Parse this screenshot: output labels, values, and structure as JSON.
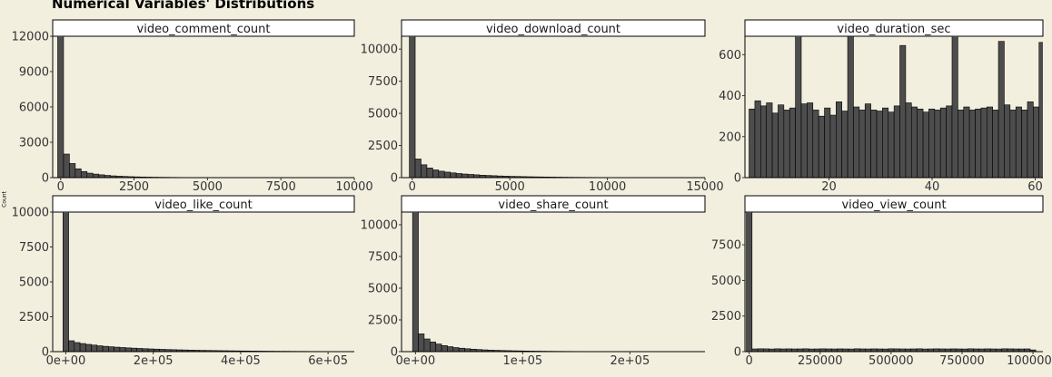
{
  "title": "Numerical Variables' Distributions",
  "y_axis_label": "Count",
  "colors": {
    "background": "#f3efdf",
    "bar_fill": "#4d4d4d",
    "bar_stroke": "#000000",
    "strip_fill": "#ffffff"
  },
  "chart_data": [
    {
      "type": "bar",
      "title": "video_comment_count",
      "xlim": [
        -270,
        10000
      ],
      "ylim": [
        0,
        12000
      ],
      "x_ticks": [
        0,
        2500,
        5000,
        7500,
        10000
      ],
      "x_tick_labels": [
        "0",
        "2500",
        "5000",
        "7500",
        "10000"
      ],
      "y_ticks": [
        0,
        3000,
        6000,
        9000,
        12000
      ],
      "y_tick_labels": [
        "0",
        "3000",
        "6000",
        "9000",
        "12000"
      ],
      "bin_start": -100,
      "bin_width": 200,
      "values": [
        13000,
        2000,
        1200,
        750,
        520,
        380,
        300,
        240,
        190,
        150,
        120,
        100,
        80,
        65,
        55,
        45,
        38,
        32,
        27,
        22,
        18,
        15,
        13,
        11,
        9,
        8,
        7,
        6,
        5,
        4,
        4,
        3,
        3,
        2,
        2,
        2,
        2,
        1,
        1,
        1,
        1,
        1,
        1,
        1,
        1,
        1,
        1,
        1,
        1,
        1
      ]
    },
    {
      "type": "bar",
      "title": "video_download_count",
      "xlim": [
        -550,
        15000
      ],
      "ylim": [
        0,
        11000
      ],
      "x_ticks": [
        0,
        5000,
        10000,
        15000
      ],
      "x_tick_labels": [
        "0",
        "5000",
        "10000",
        "15000"
      ],
      "y_ticks": [
        0,
        2500,
        5000,
        7500,
        10000
      ],
      "y_tick_labels": [
        "0",
        "2500",
        "5000",
        "7500",
        "10000"
      ],
      "bin_start": -150,
      "bin_width": 300,
      "values": [
        12000,
        1450,
        1000,
        750,
        600,
        500,
        430,
        370,
        320,
        280,
        250,
        220,
        190,
        170,
        150,
        130,
        115,
        100,
        90,
        80,
        70,
        62,
        55,
        48,
        42,
        37,
        32,
        28,
        25,
        22,
        19,
        17,
        15,
        13,
        11,
        10,
        9,
        8,
        7,
        6,
        5,
        5,
        4,
        4,
        3,
        3,
        3,
        2,
        2,
        2
      ]
    },
    {
      "type": "bar",
      "title": "video_duration_sec",
      "xlim": [
        3.7,
        61.5
      ],
      "ylim": [
        0,
        690
      ],
      "x_ticks": [
        20,
        40,
        60
      ],
      "x_tick_labels": [
        "20",
        "40",
        "60"
      ],
      "y_ticks": [
        0,
        200,
        400,
        600
      ],
      "y_tick_labels": [
        "0",
        "200",
        "400",
        "600"
      ],
      "bin_start": 4.5,
      "bin_width": 1.125,
      "values": [
        335,
        375,
        350,
        365,
        315,
        355,
        330,
        340,
        720,
        360,
        365,
        330,
        300,
        340,
        305,
        370,
        325,
        690,
        345,
        330,
        360,
        330,
        325,
        340,
        320,
        350,
        645,
        365,
        345,
        335,
        320,
        335,
        330,
        340,
        350,
        720,
        330,
        345,
        330,
        335,
        340,
        345,
        330,
        665,
        355,
        330,
        345,
        330,
        370,
        345,
        660
      ]
    },
    {
      "type": "bar",
      "title": "video_like_count",
      "xlim": [
        -30000,
        660000
      ],
      "ylim": [
        0,
        10000
      ],
      "x_ticks": [
        0,
        200000,
        400000,
        600000
      ],
      "x_tick_labels": [
        "0e+00",
        "2e+05",
        "4e+05",
        "6e+05"
      ],
      "y_ticks": [
        0,
        2500,
        5000,
        7500,
        10000
      ],
      "y_tick_labels": [
        "0",
        "2500",
        "5000",
        "7500",
        "10000"
      ],
      "bin_start": -6500,
      "bin_width": 13000,
      "values": [
        10500,
        780,
        650,
        580,
        520,
        470,
        420,
        380,
        350,
        320,
        295,
        270,
        250,
        230,
        210,
        195,
        180,
        165,
        150,
        140,
        130,
        120,
        110,
        100,
        92,
        85,
        78,
        72,
        66,
        60,
        55,
        50,
        46,
        42,
        38,
        35,
        32,
        29,
        26,
        24,
        22,
        20,
        18,
        16,
        15,
        14,
        12,
        11,
        10,
        9
      ]
    },
    {
      "type": "bar",
      "title": "video_share_count",
      "xlim": [
        -13000,
        270000
      ],
      "ylim": [
        0,
        11000
      ],
      "x_ticks": [
        0,
        100000,
        200000
      ],
      "x_tick_labels": [
        "0e+00",
        "1e+05",
        "2e+05"
      ],
      "y_ticks": [
        0,
        2500,
        5000,
        7500,
        10000
      ],
      "y_tick_labels": [
        "0",
        "2500",
        "5000",
        "7500",
        "10000"
      ],
      "bin_start": -2700,
      "bin_width": 5400,
      "values": [
        12000,
        1400,
        1000,
        760,
        600,
        480,
        390,
        320,
        270,
        230,
        195,
        165,
        140,
        120,
        104,
        90,
        78,
        68,
        59,
        51,
        44,
        38,
        33,
        29,
        25,
        22,
        19,
        17,
        15,
        13,
        11,
        10,
        9,
        8,
        7,
        6,
        5,
        5,
        4,
        4,
        3,
        3,
        3,
        2,
        2,
        2,
        2,
        1,
        1,
        1
      ]
    },
    {
      "type": "bar",
      "title": "video_view_count",
      "xlim": [
        -15000,
        1035000
      ],
      "ylim": [
        0,
        9800
      ],
      "x_ticks": [
        0,
        250000,
        500000,
        750000,
        1000000
      ],
      "x_tick_labels": [
        "0",
        "250000",
        "500000",
        "750000",
        "1000000"
      ],
      "y_ticks": [
        0,
        2500,
        5000,
        7500
      ],
      "y_tick_labels": [
        "0",
        "2500",
        "5000",
        "7500"
      ],
      "bin_start": -10000,
      "bin_width": 20000,
      "values": [
        10000,
        190,
        200,
        195,
        185,
        200,
        190,
        195,
        188,
        192,
        200,
        185,
        190,
        198,
        192,
        188,
        195,
        190,
        185,
        200,
        192,
        188,
        195,
        190,
        185,
        200,
        195,
        190,
        188,
        192,
        200,
        185,
        190,
        198,
        192,
        188,
        195,
        190,
        185,
        200,
        192,
        188,
        195,
        190,
        185,
        200,
        195,
        190,
        188,
        192,
        120
      ]
    }
  ]
}
